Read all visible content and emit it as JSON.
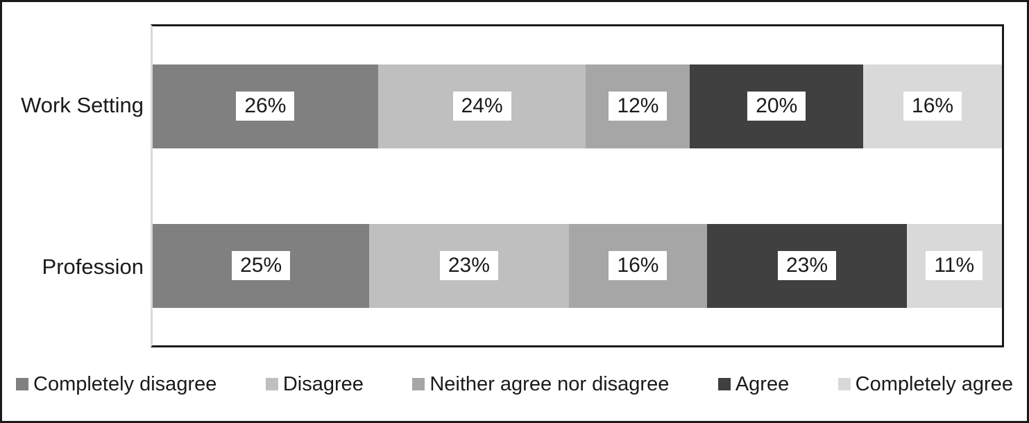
{
  "chart_data": {
    "type": "bar",
    "variant": "horizontal-stacked",
    "title": "",
    "xlabel": "",
    "ylabel": "",
    "categories": [
      "Work Setting",
      "Profession"
    ],
    "series": [
      {
        "name": "Completely disagree",
        "color": "#808080",
        "values": [
          26,
          25
        ]
      },
      {
        "name": "Disagree",
        "color": "#bfbfbf",
        "values": [
          24,
          23
        ]
      },
      {
        "name": "Neither agree nor disagree",
        "color": "#a6a6a6",
        "values": [
          12,
          16
        ]
      },
      {
        "name": "Agree",
        "color": "#404040",
        "values": [
          20,
          23
        ]
      },
      {
        "name": "Completely agree",
        "color": "#d9d9d9",
        "values": [
          16,
          11
        ]
      }
    ],
    "value_label_suffix": "%",
    "value_labels_visible": true,
    "legend_position": "bottom",
    "grid": false,
    "axis_ticks_visible": false
  },
  "style_colors": {
    "frame_border": "#1a1a1a",
    "plot_border": "#1a1a1a",
    "axis_line_left": "#d9d9d9",
    "value_chip_background": "#ffffff",
    "text": "#1a1a1a",
    "background": "#ffffff"
  }
}
